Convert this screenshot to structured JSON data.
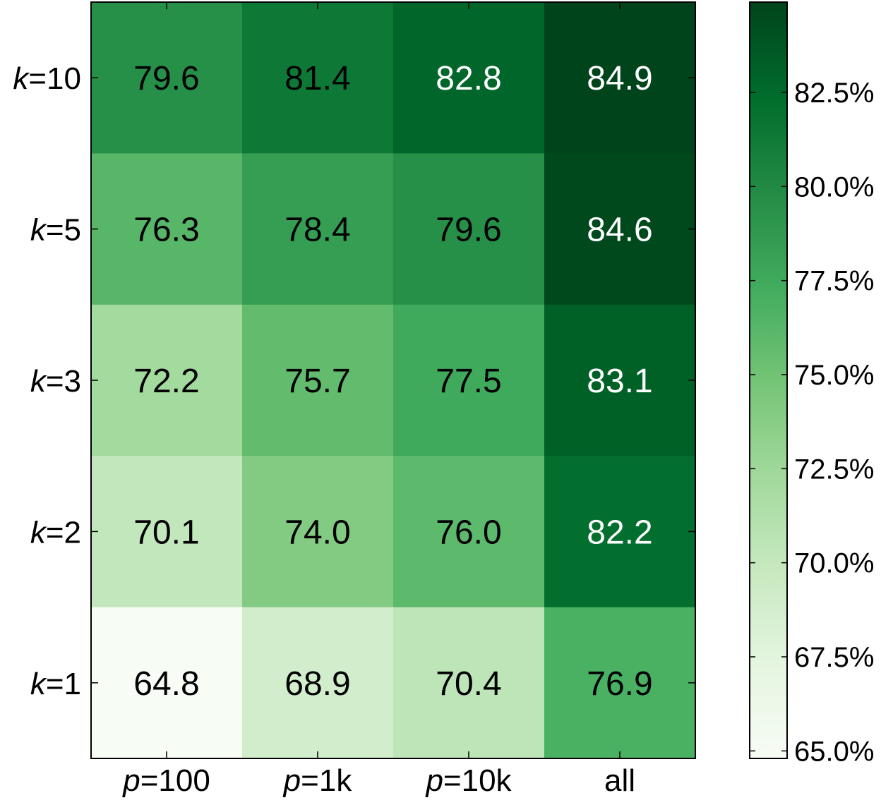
{
  "chart_data": {
    "type": "heatmap",
    "x_categories": [
      {
        "italic": "p",
        "rest": "=100"
      },
      {
        "italic": "p",
        "rest": "=1k"
      },
      {
        "italic": "p",
        "rest": "=10k"
      },
      {
        "italic": "",
        "rest": "all"
      }
    ],
    "y_categories": [
      {
        "italic": "k",
        "rest": "=10"
      },
      {
        "italic": "k",
        "rest": "=5"
      },
      {
        "italic": "k",
        "rest": "=3"
      },
      {
        "italic": "k",
        "rest": "=2"
      },
      {
        "italic": "k",
        "rest": "=1"
      }
    ],
    "values": [
      [
        79.6,
        81.4,
        82.8,
        84.9
      ],
      [
        76.3,
        78.4,
        79.6,
        84.6
      ],
      [
        72.2,
        75.7,
        77.5,
        83.1
      ],
      [
        70.1,
        74.0,
        76.0,
        82.2
      ],
      [
        64.8,
        68.9,
        70.4,
        76.9
      ]
    ],
    "colorbar": {
      "range": [
        64.8,
        84.9
      ],
      "ticks": [
        "65.0%",
        "67.5%",
        "70.0%",
        "72.5%",
        "75.0%",
        "77.5%",
        "80.0%",
        "82.5%"
      ],
      "tick_values": [
        65.0,
        67.5,
        70.0,
        72.5,
        75.0,
        77.5,
        80.0,
        82.5
      ]
    },
    "colormap": [
      "#f7fcf5",
      "#e5f5e0",
      "#c7e9c0",
      "#a1d99b",
      "#74c476",
      "#41ab5d",
      "#238b45",
      "#006d2c",
      "#00441b"
    ],
    "text_colors": {
      "dark": "#000000",
      "light": "#ffffff"
    },
    "title": "",
    "xlabel": "",
    "ylabel": ""
  }
}
